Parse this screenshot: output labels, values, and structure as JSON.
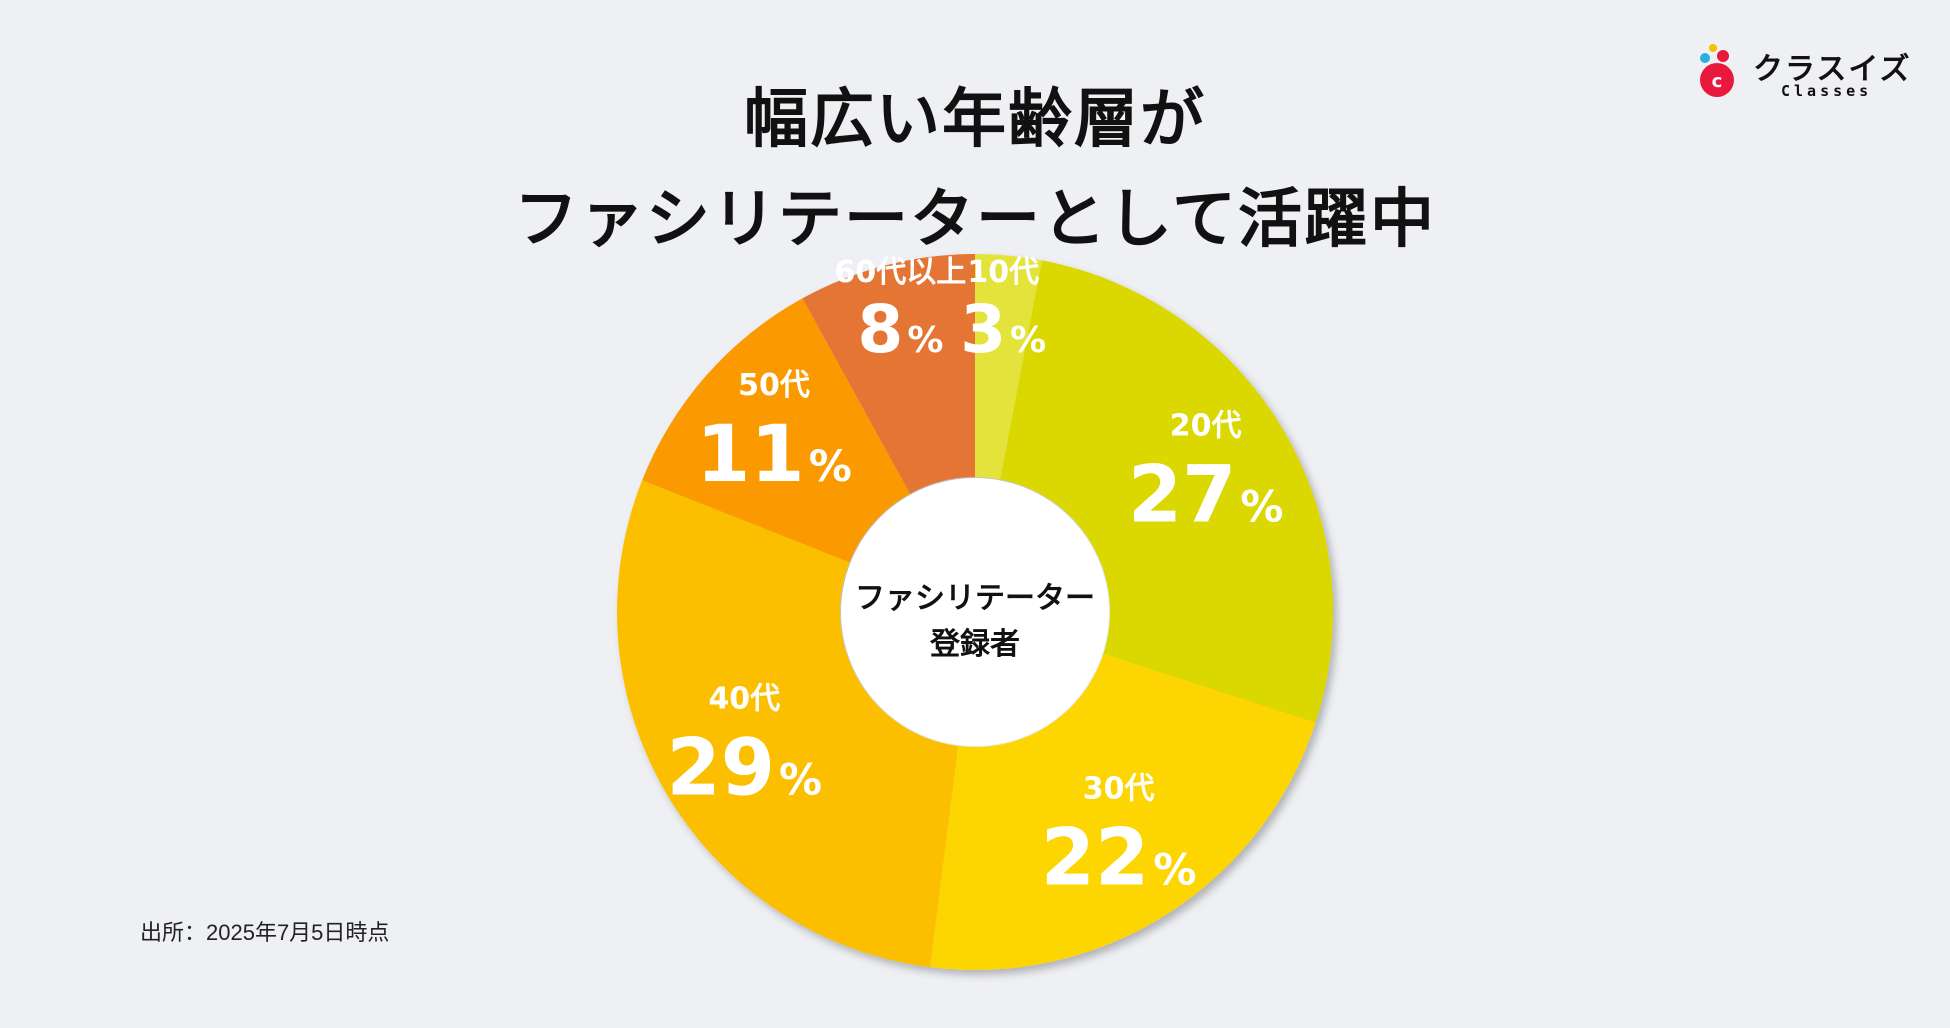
{
  "title": {
    "line1": "幅広い年齢層が",
    "line2": "ファシリテーターとして活躍中"
  },
  "logo": {
    "jp": "クラスイズ",
    "en": "Classes",
    "mark_letter": "c"
  },
  "source": "出所：2025年7月5日時点",
  "chart_data": {
    "type": "pie",
    "donut": true,
    "center_label": [
      "ファシリテーター",
      "登録者"
    ],
    "unit": "%",
    "slices": [
      {
        "label": "10代",
        "value": 3,
        "color": "#e3e33b"
      },
      {
        "label": "20代",
        "value": 27,
        "color": "#dbd700"
      },
      {
        "label": "30代",
        "value": 22,
        "color": "#fdd500"
      },
      {
        "label": "40代",
        "value": 29,
        "color": "#fbbf00"
      },
      {
        "label": "50代",
        "value": 11,
        "color": "#fb9a00"
      },
      {
        "label": "60代以上",
        "value": 8,
        "color": "#e57535"
      }
    ]
  }
}
